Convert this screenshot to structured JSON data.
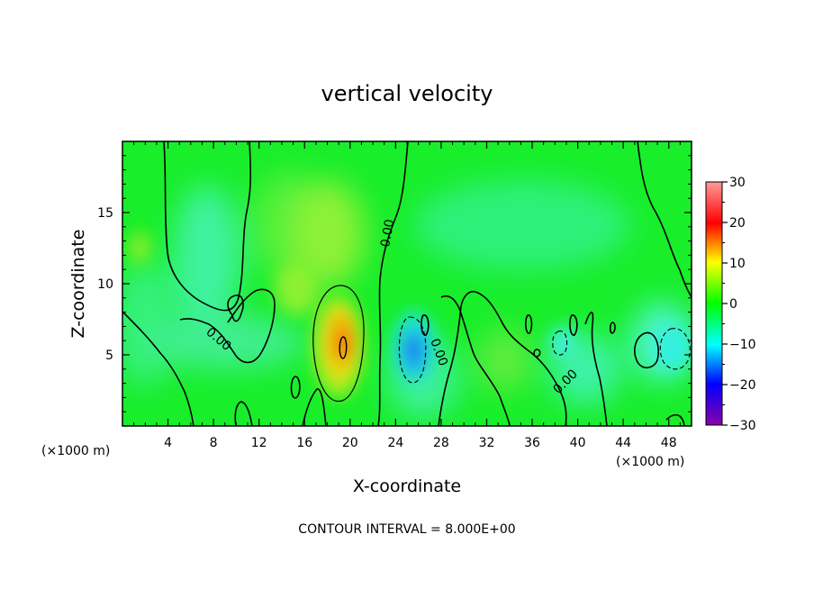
{
  "chart_data": {
    "type": "heatmap",
    "title": "vertical velocity",
    "xlabel": "X-coordinate",
    "ylabel": "Z-coordinate",
    "x_unit_left": "(×1000 m)",
    "x_unit_right": "(×1000 m)",
    "xlim": [
      0,
      50
    ],
    "ylim": [
      0,
      20
    ],
    "x_ticks": [
      4,
      8,
      12,
      16,
      20,
      24,
      28,
      32,
      36,
      40,
      44,
      48
    ],
    "y_ticks": [
      5,
      10,
      15
    ],
    "footer": "CONTOUR INTERVAL = 8.000E+00",
    "contour_labels": [
      "0.00",
      "0.00",
      "0.00",
      "0.00"
    ],
    "colorbar": {
      "min": -30,
      "max": 30,
      "ticks": [
        30,
        20,
        10,
        0,
        -10,
        -20,
        -30
      ],
      "colors": [
        "#8b00a8",
        "#0000ff",
        "#00ffff",
        "#00ff00",
        "#ffff00",
        "#ff0000",
        "#ff9999"
      ]
    },
    "features": [
      {
        "name": "updraft",
        "x": 19.4,
        "z": 5.5,
        "peak": 21
      },
      {
        "name": "downdraft",
        "x": 25.8,
        "z": 5.3,
        "peak": -12
      },
      {
        "name": "downdraft",
        "x": 47.4,
        "z": 5.5,
        "peak": -6
      },
      {
        "name": "downdraft",
        "x": 38.4,
        "z": 5.8,
        "peak": -5
      },
      {
        "name": "weak updraft",
        "x": 10,
        "z": 5,
        "peak": 6
      }
    ]
  }
}
